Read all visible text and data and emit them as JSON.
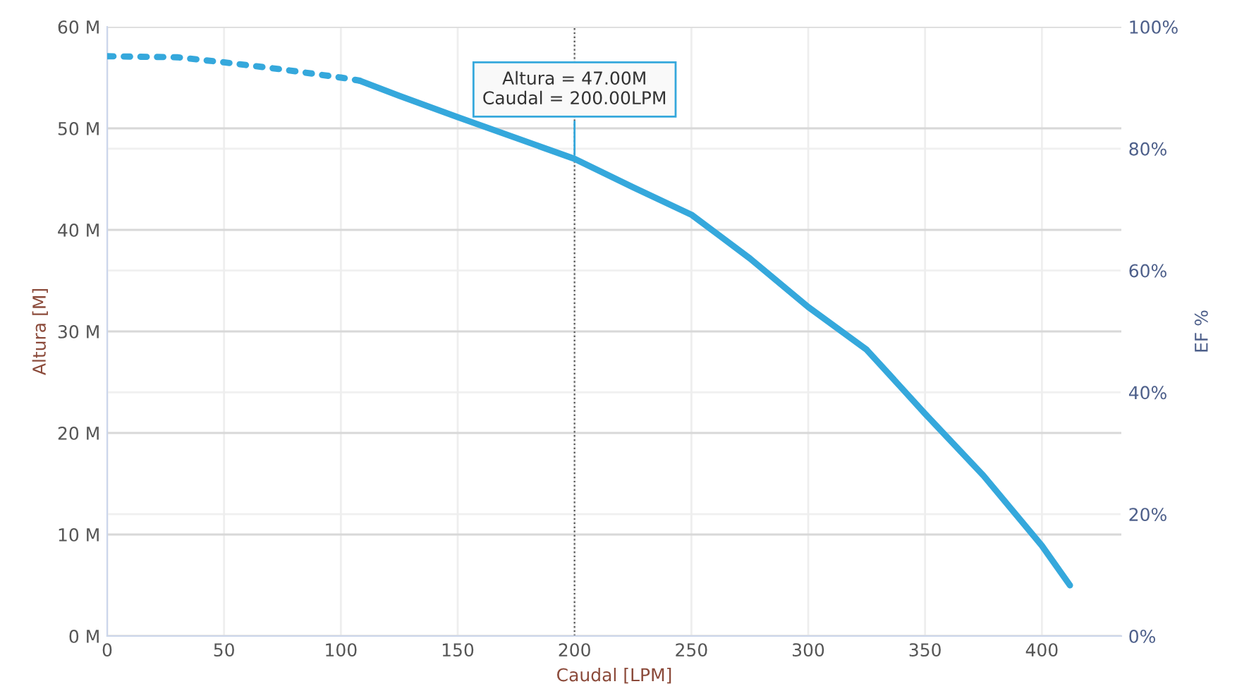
{
  "chart_data": {
    "type": "line",
    "xlabel": "Caudal [LPM]",
    "ylabel": "Altura [M]",
    "y2label": "EF %",
    "xlim": [
      0,
      434
    ],
    "xticks": [
      0,
      50,
      100,
      150,
      200,
      250,
      300,
      350,
      400
    ],
    "ylim": [
      0,
      60
    ],
    "yticks": [
      {
        "value": 0,
        "label": "0 M"
      },
      {
        "value": 10,
        "label": "10 M"
      },
      {
        "value": 20,
        "label": "20 M"
      },
      {
        "value": 30,
        "label": "30 M"
      },
      {
        "value": 40,
        "label": "40 M"
      },
      {
        "value": 50,
        "label": "50 M"
      },
      {
        "value": 60,
        "label": "60 M"
      }
    ],
    "y2lim": [
      0,
      100
    ],
    "y2ticks": [
      {
        "value": 0,
        "label": "0%"
      },
      {
        "value": 20,
        "label": "20%"
      },
      {
        "value": 40,
        "label": "40%"
      },
      {
        "value": 60,
        "label": "60%"
      },
      {
        "value": 80,
        "label": "80%"
      },
      {
        "value": 100,
        "label": "100%"
      }
    ],
    "grid": true,
    "legend": false,
    "marker": "none",
    "series": [
      {
        "color": "#35a8dc",
        "line_style": "dotted",
        "x": [
          0,
          30,
          50,
          75,
          100,
          108
        ],
        "values": [
          57.1,
          57.0,
          56.5,
          55.8,
          55.0,
          54.7
        ]
      },
      {
        "color": "#35a8dc",
        "line_style": "solid",
        "x": [
          108,
          125,
          150,
          200,
          225,
          250,
          275,
          300,
          325,
          350,
          375,
          400,
          412
        ],
        "values": [
          54.7,
          53.2,
          51.1,
          47.0,
          44.2,
          41.5,
          37.2,
          32.4,
          28.2,
          21.9,
          15.8,
          8.9,
          5.0
        ]
      }
    ],
    "ref_lines": [
      {
        "axis": "x",
        "value": 200,
        "color": "#555555",
        "line_style": "dotted"
      }
    ],
    "annotations": [
      {
        "text": "Altura = 47.00M\nCaudal = 200.00LPM",
        "x": 200,
        "y": 47.0
      }
    ]
  }
}
